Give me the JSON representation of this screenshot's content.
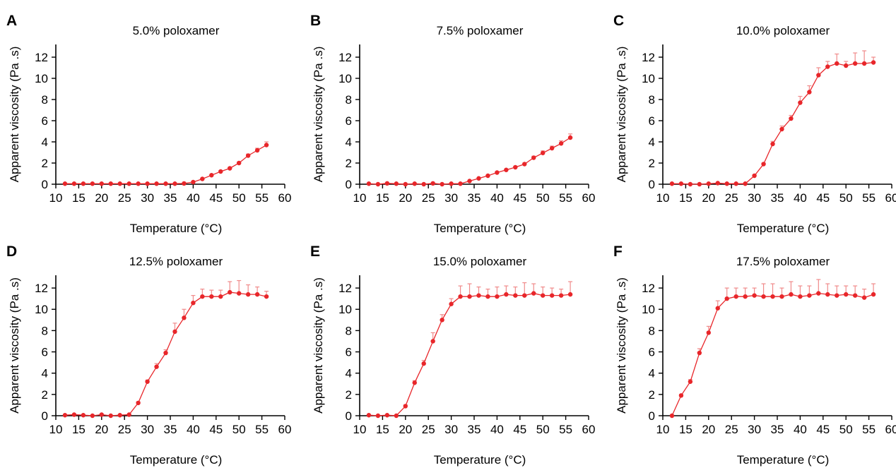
{
  "style": {
    "series_color": "#e8262a",
    "errorbar_color": "#f08a8a",
    "axis_color": "#000000"
  },
  "axes": {
    "xlabel": "Temperature (°C)",
    "ylabel": "Apparent viscosity (Pa .s)",
    "xlim": [
      10,
      60
    ],
    "ylim": [
      0,
      12
    ],
    "xticks": [
      10,
      15,
      20,
      25,
      30,
      35,
      40,
      45,
      50,
      55,
      60
    ],
    "yticks": [
      0,
      2,
      4,
      6,
      8,
      10,
      12
    ]
  },
  "chart_data": [
    {
      "type": "line",
      "panel_label": "A",
      "title": "5.0% poloxamer",
      "xlabel": "Temperature (°C)",
      "ylabel": "Apparent viscosity (Pa .s)",
      "xlim": [
        10,
        60
      ],
      "ylim": [
        0,
        12
      ],
      "grid": false,
      "error_bars": true,
      "x": [
        12,
        14,
        16,
        18,
        20,
        22,
        24,
        26,
        28,
        30,
        32,
        34,
        36,
        38,
        40,
        42,
        44,
        46,
        48,
        50,
        52,
        54,
        56
      ],
      "y": [
        0.05,
        0.05,
        0.05,
        0.05,
        0.05,
        0.05,
        0.05,
        0.05,
        0.05,
        0.05,
        0.05,
        0.05,
        0.05,
        0.07,
        0.2,
        0.5,
        0.85,
        1.2,
        1.5,
        2.0,
        2.7,
        3.2,
        3.7
      ],
      "err": [
        0,
        0,
        0,
        0,
        0,
        0,
        0,
        0,
        0,
        0,
        0,
        0,
        0,
        0,
        0.05,
        0.05,
        0.08,
        0.08,
        0.1,
        0.1,
        0.15,
        0.2,
        0.3
      ]
    },
    {
      "type": "line",
      "panel_label": "B",
      "title": "7.5% poloxamer",
      "xlabel": "Temperature (°C)",
      "ylabel": "Apparent viscosity (Pa .s)",
      "xlim": [
        10,
        60
      ],
      "ylim": [
        0,
        12
      ],
      "grid": false,
      "error_bars": true,
      "x": [
        12,
        14,
        16,
        18,
        20,
        22,
        24,
        26,
        28,
        30,
        32,
        34,
        36,
        38,
        40,
        42,
        44,
        46,
        48,
        50,
        52,
        54,
        56
      ],
      "y": [
        0.05,
        0.0,
        0.08,
        0.05,
        0.0,
        0.05,
        0.0,
        0.08,
        0.0,
        0.05,
        0.05,
        0.3,
        0.55,
        0.8,
        1.1,
        1.35,
        1.6,
        1.9,
        2.5,
        2.95,
        3.4,
        3.85,
        4.4
      ],
      "err": [
        0,
        0,
        0,
        0,
        0,
        0,
        0,
        0,
        0,
        0,
        0,
        0.05,
        0.05,
        0.05,
        0.08,
        0.08,
        0.1,
        0.1,
        0.15,
        0.2,
        0.2,
        0.25,
        0.35
      ]
    },
    {
      "type": "line",
      "panel_label": "C",
      "title": "10.0% poloxamer",
      "xlabel": "Temperature (°C)",
      "ylabel": "Apparent viscosity (Pa .s)",
      "xlim": [
        10,
        60
      ],
      "ylim": [
        0,
        12
      ],
      "grid": false,
      "error_bars": true,
      "x": [
        12,
        14,
        16,
        18,
        20,
        22,
        24,
        26,
        28,
        30,
        32,
        34,
        36,
        38,
        40,
        42,
        44,
        46,
        48,
        50,
        52,
        54,
        56
      ],
      "y": [
        0.05,
        0.05,
        0.0,
        0.0,
        0.05,
        0.1,
        0.05,
        0.05,
        0.05,
        0.8,
        1.9,
        3.8,
        5.2,
        6.2,
        7.7,
        8.7,
        10.3,
        11.1,
        11.4,
        11.2,
        11.4,
        11.4,
        11.5
      ],
      "err": [
        0,
        0,
        0,
        0,
        0,
        0,
        0,
        0,
        0,
        0.1,
        0.1,
        0.25,
        0.3,
        0.3,
        0.6,
        0.6,
        0.7,
        0.5,
        0.9,
        0.4,
        1.0,
        1.2,
        0.5
      ]
    },
    {
      "type": "line",
      "panel_label": "D",
      "title": "12.5% poloxamer",
      "xlabel": "Temperature (°C)",
      "ylabel": "Apparent viscosity (Pa .s)",
      "xlim": [
        10,
        60
      ],
      "ylim": [
        0,
        12
      ],
      "grid": false,
      "error_bars": true,
      "x": [
        12,
        14,
        16,
        18,
        20,
        22,
        24,
        26,
        28,
        30,
        32,
        34,
        36,
        38,
        40,
        42,
        44,
        46,
        48,
        50,
        52,
        54,
        56
      ],
      "y": [
        0.05,
        0.1,
        0.05,
        0.0,
        0.1,
        0.0,
        0.05,
        0.1,
        1.2,
        3.2,
        4.6,
        5.9,
        7.9,
        9.2,
        10.6,
        11.2,
        11.2,
        11.2,
        11.6,
        11.5,
        11.4,
        11.4,
        11.2
      ],
      "err": [
        0,
        0,
        0,
        0,
        0,
        0,
        0,
        0,
        0.1,
        0.15,
        0.3,
        0.3,
        0.8,
        0.8,
        0.7,
        0.7,
        0.6,
        0.6,
        1.0,
        1.2,
        0.9,
        0.7,
        0.5
      ]
    },
    {
      "type": "line",
      "panel_label": "E",
      "title": "15.0% poloxamer",
      "xlabel": "Temperature (°C)",
      "ylabel": "Apparent viscosity (Pa .s)",
      "xlim": [
        10,
        60
      ],
      "ylim": [
        0,
        12
      ],
      "grid": false,
      "error_bars": true,
      "x": [
        12,
        14,
        16,
        18,
        20,
        22,
        24,
        26,
        28,
        30,
        32,
        34,
        36,
        38,
        40,
        42,
        44,
        46,
        48,
        50,
        52,
        54,
        56
      ],
      "y": [
        0.05,
        0.0,
        0.05,
        0.0,
        0.9,
        3.1,
        4.9,
        7.0,
        9.0,
        10.5,
        11.2,
        11.2,
        11.3,
        11.2,
        11.2,
        11.4,
        11.3,
        11.3,
        11.5,
        11.3,
        11.3,
        11.3,
        11.4
      ],
      "err": [
        0,
        0,
        0,
        0,
        0.1,
        0.2,
        0.3,
        0.8,
        0.5,
        0.5,
        1.0,
        1.2,
        0.8,
        0.7,
        0.9,
        0.8,
        0.8,
        1.2,
        0.9,
        0.8,
        0.7,
        0.6,
        1.2
      ]
    },
    {
      "type": "line",
      "panel_label": "F",
      "title": "17.5% poloxamer",
      "xlabel": "Temperature (°C)",
      "ylabel": "Apparent viscosity (Pa .s)",
      "xlim": [
        10,
        60
      ],
      "ylim": [
        0,
        12
      ],
      "grid": false,
      "error_bars": true,
      "x": [
        12,
        14,
        16,
        18,
        20,
        22,
        24,
        26,
        28,
        30,
        32,
        34,
        36,
        38,
        40,
        42,
        44,
        46,
        48,
        50,
        52,
        54,
        56
      ],
      "y": [
        0.0,
        1.9,
        3.2,
        5.9,
        7.8,
        10.1,
        11.0,
        11.2,
        11.2,
        11.3,
        11.2,
        11.2,
        11.2,
        11.4,
        11.2,
        11.3,
        11.5,
        11.4,
        11.3,
        11.4,
        11.3,
        11.1,
        11.4
      ],
      "err": [
        0,
        0.1,
        0.2,
        0.4,
        0.6,
        0.7,
        1.0,
        0.8,
        0.8,
        0.7,
        1.2,
        1.2,
        0.8,
        1.2,
        1.0,
        0.9,
        1.3,
        1.0,
        0.9,
        0.8,
        0.9,
        0.8,
        1.0
      ]
    }
  ]
}
